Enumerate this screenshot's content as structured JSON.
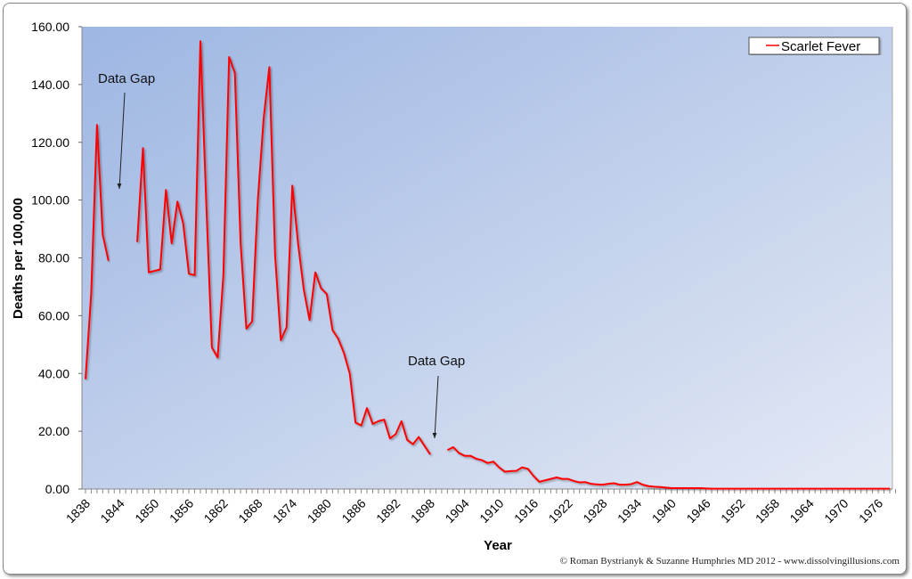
{
  "chart_data": {
    "type": "line",
    "title": "",
    "xlabel": "Year",
    "ylabel": "Deaths per 100,000",
    "ylim": [
      0,
      160
    ],
    "xlim": [
      1838,
      1978
    ],
    "yticks": [
      "0.00",
      "20.00",
      "40.00",
      "60.00",
      "80.00",
      "100.00",
      "120.00",
      "140.00",
      "160.00"
    ],
    "xticks": [
      "1838",
      "1844",
      "1850",
      "1856",
      "1862",
      "1868",
      "1874",
      "1880",
      "1886",
      "1892",
      "1898",
      "1904",
      "1910",
      "1916",
      "1922",
      "1928",
      "1934",
      "1940",
      "1946",
      "1952",
      "1958",
      "1964",
      "1970",
      "1976"
    ],
    "legend": {
      "position": "top-right",
      "entries": [
        "Scarlet Fever"
      ]
    },
    "grid": false,
    "series": [
      {
        "name": "Scarlet Fever",
        "color": "#ff0000",
        "x_start": 1838,
        "values": [
          38,
          68,
          126,
          88,
          79,
          null,
          null,
          null,
          null,
          85.5,
          118,
          75,
          75.5,
          76,
          103.5,
          85,
          99.5,
          92,
          74.5,
          74,
          155,
          100,
          49,
          45.5,
          74,
          149.5,
          144,
          85,
          55.5,
          58,
          100,
          128,
          146,
          81,
          51.5,
          56,
          105,
          85,
          69,
          58.5,
          75,
          69.5,
          67.5,
          55,
          52,
          47,
          40,
          23,
          22,
          28,
          22.5,
          23.5,
          24,
          17.5,
          19,
          23.5,
          17,
          15.5,
          18,
          15,
          12,
          null,
          null,
          13.5,
          14.5,
          12.5,
          11.5,
          11.5,
          10.5,
          10,
          9,
          9.5,
          7.5,
          6,
          6.2,
          6.3,
          7.5,
          7,
          4.5,
          2.5,
          3,
          3.5,
          4,
          3.5,
          3.5,
          2.8,
          2.3,
          2.4,
          1.8,
          1.6,
          1.5,
          1.8,
          2,
          1.5,
          1.5,
          1.7,
          2.4,
          1.5,
          1,
          0.8,
          0.7,
          0.5,
          0.3,
          0.3,
          0.3,
          0.3,
          0.3,
          0.3,
          0.2,
          0.1,
          0.1,
          0.1,
          0.1,
          0.1,
          0.1,
          0.1,
          0.1,
          0.1,
          0.1,
          0.1,
          0.1,
          0.1,
          0.1,
          0.1,
          0.1,
          0.1,
          0.1,
          0.1,
          0.1,
          0.1,
          0.1,
          0.1,
          0.1,
          0.1,
          0.1,
          0.1,
          0.1,
          0.1,
          0.1,
          0.1,
          0.1
        ]
      }
    ],
    "annotations": [
      {
        "text": "Data Gap",
        "year": 1843
      },
      {
        "text": "Data Gap",
        "year": 1899
      }
    ]
  },
  "credit": "© Roman Bystrianyk & Suzanne Humphries MD 2012 - www.dissolvingillusions.com"
}
